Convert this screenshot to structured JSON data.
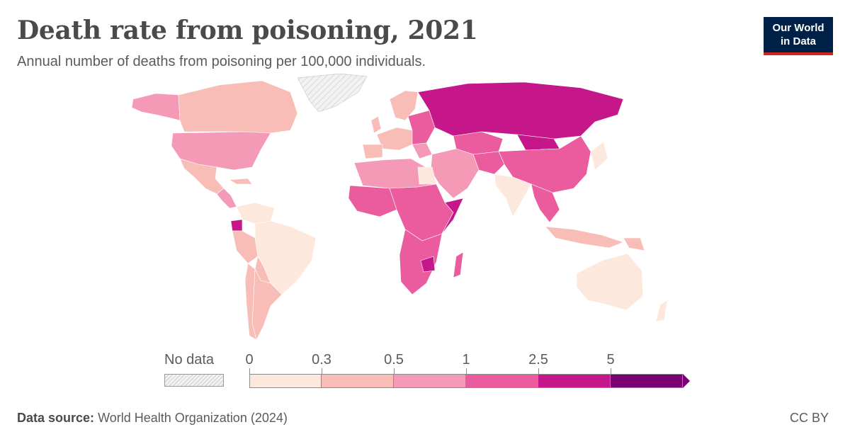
{
  "header": {
    "title": "Death rate from poisoning, 2021",
    "subtitle": "Annual number of deaths from poisoning per 100,000 individuals."
  },
  "logo": {
    "line1": "Our World",
    "line2": "in Data",
    "background": "#002147",
    "accent": "#ce261e"
  },
  "legend": {
    "no_data_label": "No data",
    "ticks": [
      "0",
      "0.3",
      "0.5",
      "1",
      "2.5",
      "5"
    ],
    "bins": [
      {
        "range": [
          0,
          0.3
        ],
        "color": "#fde8dd"
      },
      {
        "range": [
          0.3,
          0.5
        ],
        "color": "#f9bdb7"
      },
      {
        "range": [
          0.5,
          1
        ],
        "color": "#f49ab6"
      },
      {
        "range": [
          1,
          2.5
        ],
        "color": "#ea5c9e"
      },
      {
        "range": [
          2.5,
          5
        ],
        "color": "#c5168a"
      },
      {
        "range": [
          5,
          null
        ],
        "color": "#7a0074"
      }
    ]
  },
  "footer": {
    "source_label": "Data source:",
    "source_text": "World Health Organization (2024)",
    "license": "CC BY"
  }
}
